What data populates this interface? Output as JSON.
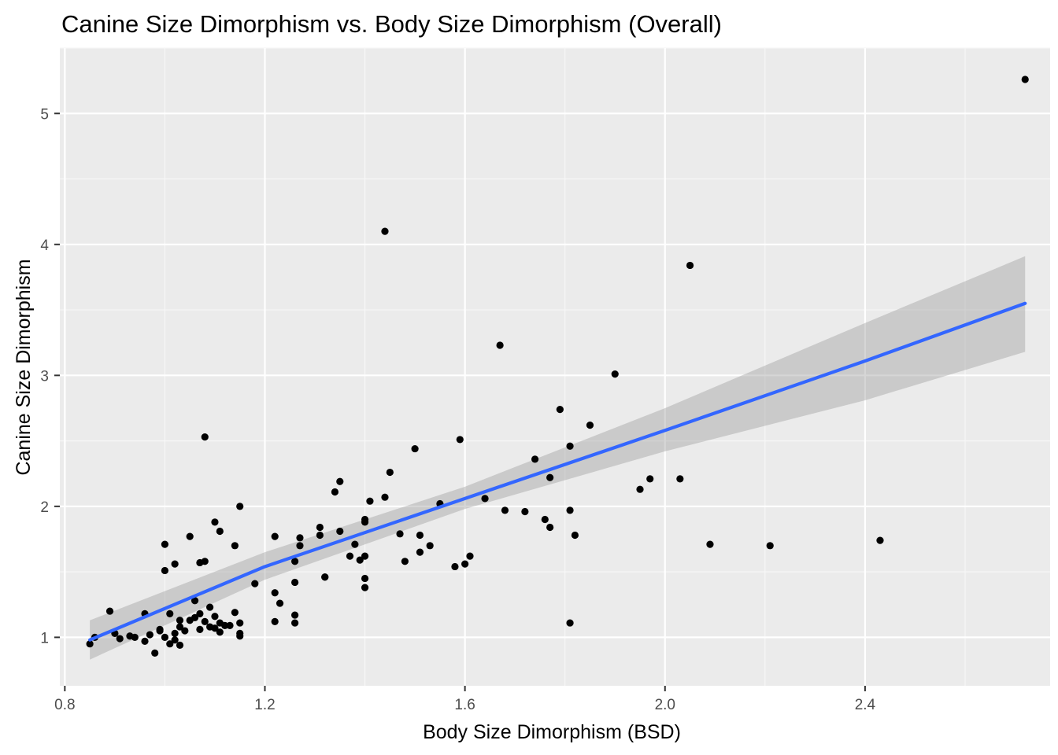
{
  "chart_data": {
    "type": "scatter",
    "title": "Canine Size Dimorphism vs. Body Size Dimorphism (Overall)",
    "xlabel": "Body Size Dimorphism (BSD)",
    "ylabel": "Canine Size Dimorphism",
    "xlim": [
      0.79,
      2.77
    ],
    "ylim": [
      0.63,
      5.5
    ],
    "x_ticks": [
      0.8,
      1.2,
      1.6,
      2.0,
      2.4
    ],
    "x_tick_labels": [
      "0.8",
      "1.2",
      "1.6",
      "2.0",
      "2.4"
    ],
    "y_ticks": [
      1,
      2,
      3,
      4,
      5
    ],
    "y_tick_labels": [
      "1",
      "2",
      "3",
      "4",
      "5"
    ],
    "grid": true,
    "background": "#ebebeb",
    "point_color": "#000000",
    "points": [
      {
        "x": 0.85,
        "y": 0.95
      },
      {
        "x": 0.86,
        "y": 1.0
      },
      {
        "x": 0.89,
        "y": 1.2
      },
      {
        "x": 0.9,
        "y": 1.03
      },
      {
        "x": 0.91,
        "y": 0.99
      },
      {
        "x": 0.93,
        "y": 1.01
      },
      {
        "x": 0.94,
        "y": 1.0
      },
      {
        "x": 0.96,
        "y": 0.97
      },
      {
        "x": 0.96,
        "y": 1.18
      },
      {
        "x": 0.97,
        "y": 1.02
      },
      {
        "x": 0.98,
        "y": 0.88
      },
      {
        "x": 0.99,
        "y": 1.06
      },
      {
        "x": 0.99,
        "y": 1.05
      },
      {
        "x": 1.0,
        "y": 1.0
      },
      {
        "x": 1.0,
        "y": 1.71
      },
      {
        "x": 1.0,
        "y": 1.51
      },
      {
        "x": 1.01,
        "y": 1.18
      },
      {
        "x": 1.01,
        "y": 0.95
      },
      {
        "x": 1.02,
        "y": 0.98
      },
      {
        "x": 1.02,
        "y": 1.03
      },
      {
        "x": 1.02,
        "y": 1.56
      },
      {
        "x": 1.03,
        "y": 1.08
      },
      {
        "x": 1.03,
        "y": 1.13
      },
      {
        "x": 1.03,
        "y": 0.94
      },
      {
        "x": 1.04,
        "y": 1.05
      },
      {
        "x": 1.05,
        "y": 1.77
      },
      {
        "x": 1.05,
        "y": 1.13
      },
      {
        "x": 1.06,
        "y": 1.28
      },
      {
        "x": 1.06,
        "y": 1.15
      },
      {
        "x": 1.07,
        "y": 1.57
      },
      {
        "x": 1.07,
        "y": 1.18
      },
      {
        "x": 1.07,
        "y": 1.06
      },
      {
        "x": 1.08,
        "y": 2.53
      },
      {
        "x": 1.08,
        "y": 1.12
      },
      {
        "x": 1.08,
        "y": 1.58
      },
      {
        "x": 1.09,
        "y": 1.08
      },
      {
        "x": 1.09,
        "y": 1.23
      },
      {
        "x": 1.1,
        "y": 1.88
      },
      {
        "x": 1.1,
        "y": 1.16
      },
      {
        "x": 1.1,
        "y": 1.07
      },
      {
        "x": 1.11,
        "y": 1.04
      },
      {
        "x": 1.11,
        "y": 1.81
      },
      {
        "x": 1.11,
        "y": 1.11
      },
      {
        "x": 1.12,
        "y": 1.09
      },
      {
        "x": 1.13,
        "y": 1.09
      },
      {
        "x": 1.14,
        "y": 1.19
      },
      {
        "x": 1.14,
        "y": 1.7
      },
      {
        "x": 1.15,
        "y": 1.01
      },
      {
        "x": 1.15,
        "y": 1.03
      },
      {
        "x": 1.15,
        "y": 1.11
      },
      {
        "x": 1.15,
        "y": 2.0
      },
      {
        "x": 1.18,
        "y": 1.41
      },
      {
        "x": 1.22,
        "y": 1.12
      },
      {
        "x": 1.22,
        "y": 1.77
      },
      {
        "x": 1.22,
        "y": 1.34
      },
      {
        "x": 1.23,
        "y": 1.26
      },
      {
        "x": 1.26,
        "y": 1.58
      },
      {
        "x": 1.26,
        "y": 1.42
      },
      {
        "x": 1.26,
        "y": 1.17
      },
      {
        "x": 1.26,
        "y": 1.11
      },
      {
        "x": 1.27,
        "y": 1.76
      },
      {
        "x": 1.27,
        "y": 1.7
      },
      {
        "x": 1.31,
        "y": 1.84
      },
      {
        "x": 1.31,
        "y": 1.78
      },
      {
        "x": 1.32,
        "y": 1.46
      },
      {
        "x": 1.32,
        "y": 1.46
      },
      {
        "x": 1.34,
        "y": 2.11
      },
      {
        "x": 1.35,
        "y": 2.19
      },
      {
        "x": 1.35,
        "y": 1.81
      },
      {
        "x": 1.37,
        "y": 1.62
      },
      {
        "x": 1.38,
        "y": 1.71
      },
      {
        "x": 1.39,
        "y": 1.59
      },
      {
        "x": 1.4,
        "y": 1.38
      },
      {
        "x": 1.4,
        "y": 1.45
      },
      {
        "x": 1.4,
        "y": 1.62
      },
      {
        "x": 1.4,
        "y": 1.9
      },
      {
        "x": 1.4,
        "y": 1.88
      },
      {
        "x": 1.41,
        "y": 2.04
      },
      {
        "x": 1.44,
        "y": 4.1
      },
      {
        "x": 1.44,
        "y": 2.07
      },
      {
        "x": 1.45,
        "y": 2.26
      },
      {
        "x": 1.47,
        "y": 1.79
      },
      {
        "x": 1.48,
        "y": 1.58
      },
      {
        "x": 1.5,
        "y": 2.44
      },
      {
        "x": 1.51,
        "y": 1.65
      },
      {
        "x": 1.51,
        "y": 1.78
      },
      {
        "x": 1.53,
        "y": 1.7
      },
      {
        "x": 1.55,
        "y": 2.02
      },
      {
        "x": 1.58,
        "y": 1.54
      },
      {
        "x": 1.59,
        "y": 2.51
      },
      {
        "x": 1.6,
        "y": 1.56
      },
      {
        "x": 1.61,
        "y": 1.62
      },
      {
        "x": 1.64,
        "y": 2.06
      },
      {
        "x": 1.67,
        "y": 3.23
      },
      {
        "x": 1.68,
        "y": 1.97
      },
      {
        "x": 1.72,
        "y": 1.96
      },
      {
        "x": 1.74,
        "y": 2.36
      },
      {
        "x": 1.76,
        "y": 1.9
      },
      {
        "x": 1.77,
        "y": 1.84
      },
      {
        "x": 1.77,
        "y": 2.22
      },
      {
        "x": 1.79,
        "y": 2.74
      },
      {
        "x": 1.81,
        "y": 1.11
      },
      {
        "x": 1.81,
        "y": 2.46
      },
      {
        "x": 1.81,
        "y": 1.97
      },
      {
        "x": 1.82,
        "y": 1.78
      },
      {
        "x": 1.85,
        "y": 2.62
      },
      {
        "x": 1.9,
        "y": 3.01
      },
      {
        "x": 1.95,
        "y": 2.13
      },
      {
        "x": 1.97,
        "y": 2.21
      },
      {
        "x": 2.03,
        "y": 2.21
      },
      {
        "x": 2.05,
        "y": 3.84
      },
      {
        "x": 2.09,
        "y": 1.71
      },
      {
        "x": 2.21,
        "y": 1.7
      },
      {
        "x": 2.43,
        "y": 1.74
      },
      {
        "x": 2.72,
        "y": 5.26
      }
    ],
    "fit_line": {
      "method": "linear",
      "color": "#3366ff",
      "band_color": "#999999",
      "x": [
        0.85,
        1.2,
        1.6,
        2.0,
        2.4,
        2.72
      ],
      "y": [
        0.98,
        1.54,
        2.06,
        2.58,
        3.11,
        3.55
      ],
      "ci_lower": [
        0.83,
        1.44,
        1.98,
        2.42,
        2.81,
        3.18
      ],
      "ci_upper": [
        1.13,
        1.65,
        2.15,
        2.75,
        3.4,
        3.91
      ]
    }
  }
}
